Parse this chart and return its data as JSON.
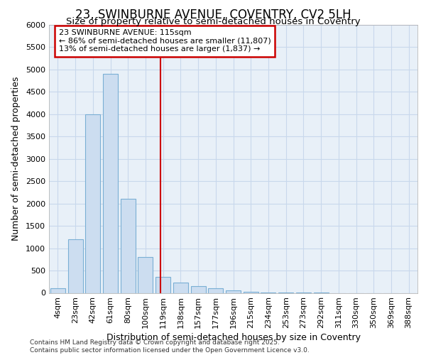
{
  "title_line1": "23, SWINBURNE AVENUE, COVENTRY, CV2 5LH",
  "title_line2": "Size of property relative to semi-detached houses in Coventry",
  "xlabel": "Distribution of semi-detached houses by size in Coventry",
  "ylabel": "Number of semi-detached properties",
  "footer_line1": "Contains HM Land Registry data © Crown copyright and database right 2025.",
  "footer_line2": "Contains public sector information licensed under the Open Government Licence v3.0.",
  "bar_labels": [
    "4sqm",
    "23sqm",
    "42sqm",
    "61sqm",
    "80sqm",
    "100sqm",
    "119sqm",
    "138sqm",
    "157sqm",
    "177sqm",
    "196sqm",
    "215sqm",
    "234sqm",
    "253sqm",
    "273sqm",
    "292sqm",
    "311sqm",
    "330sqm",
    "350sqm",
    "369sqm",
    "388sqm"
  ],
  "bar_values": [
    100,
    1200,
    4000,
    4900,
    2100,
    800,
    350,
    230,
    150,
    100,
    50,
    20,
    10,
    5,
    2,
    1,
    0,
    0,
    0,
    0,
    0
  ],
  "bar_color": "#ccddf0",
  "bar_edge_color": "#7aafd4",
  "grid_color": "#c8d8ec",
  "background_color": "#dde8f4",
  "plot_bg_color": "#e8f0f8",
  "red_line_x": 5.85,
  "annotation_text_line1": "23 SWINBURNE AVENUE: 115sqm",
  "annotation_text_line2": "← 86% of semi-detached houses are smaller (11,807)",
  "annotation_text_line3": "13% of semi-detached houses are larger (1,837) →",
  "annotation_box_color": "#cc0000",
  "ylim": [
    0,
    6000
  ],
  "yticks": [
    0,
    500,
    1000,
    1500,
    2000,
    2500,
    3000,
    3500,
    4000,
    4500,
    5000,
    5500,
    6000
  ]
}
